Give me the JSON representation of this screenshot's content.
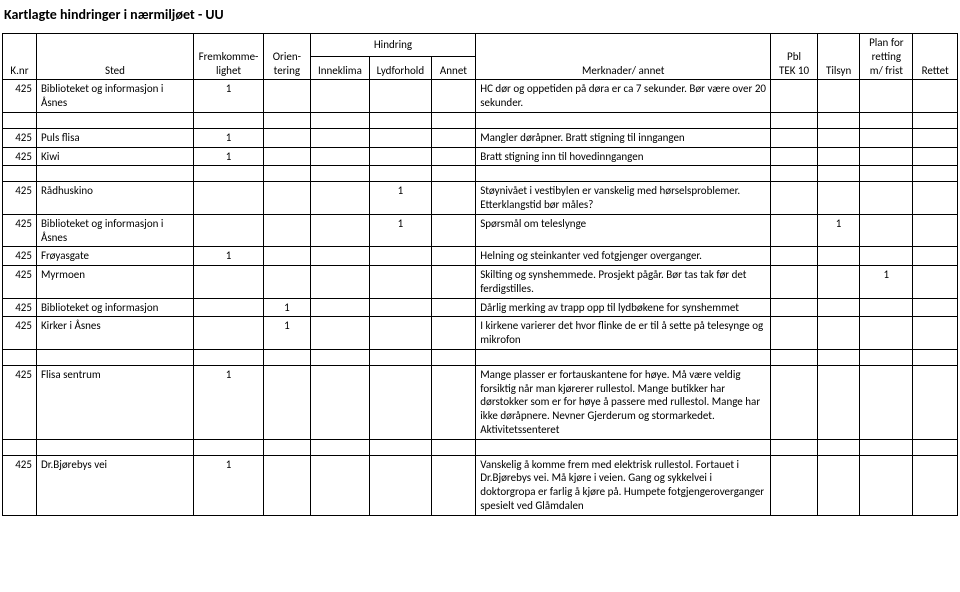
{
  "title": "Kartlagte hindringer i nærmiljøet - UU",
  "headers": {
    "knr": "K.nr",
    "sted": "Sted",
    "hindring": "Hindring",
    "fremkommelighet": "Fremkomme-\nlighet",
    "orientering": "Orien-\ntering",
    "inneklima": "Inneklima",
    "lydforhold": "Lydforhold",
    "annet": "Annet",
    "merknader": "Merknader/ annet",
    "pbl": "Pbl\nTEK 10",
    "tilsyn": "Tilsyn",
    "plan": "Plan for\nretting\nm/ frist",
    "rettet": "Rettet"
  },
  "rows": [
    {
      "knr": "425",
      "sted": "Biblioteket og informasjon i Åsnes",
      "frem": "1",
      "orien": "",
      "inne": "",
      "lyd": "",
      "annet": "",
      "merk": "HC dør og oppetiden på døra er ca 7 sekunder. Bør være over 20 sekunder.",
      "pbl": "",
      "tilsyn": "",
      "plan": "",
      "rettet": "",
      "gap_after": true
    },
    {
      "knr": "425",
      "sted": "Puls flisa",
      "frem": "1",
      "orien": "",
      "inne": "",
      "lyd": "",
      "annet": "",
      "merk": "Mangler døråpner. Bratt stigning til inngangen",
      "pbl": "",
      "tilsyn": "",
      "plan": "",
      "rettet": ""
    },
    {
      "knr": "425",
      "sted": "Kiwi",
      "frem": "1",
      "orien": "",
      "inne": "",
      "lyd": "",
      "annet": "",
      "merk": "Bratt stigning inn til hovedinngangen",
      "pbl": "",
      "tilsyn": "",
      "plan": "",
      "rettet": "",
      "gap_after": true
    },
    {
      "knr": "425",
      "sted": "Rådhuskino",
      "frem": "",
      "orien": "",
      "inne": "",
      "lyd": "1",
      "annet": "",
      "merk": "Støynivået i vestibylen er vanskelig med hørselsproblemer. Etterklangstid bør måles?",
      "pbl": "",
      "tilsyn": "",
      "plan": "",
      "rettet": ""
    },
    {
      "knr": "425",
      "sted": "Biblioteket og informasjon i Åsnes",
      "frem": "",
      "orien": "",
      "inne": "",
      "lyd": "1",
      "annet": "",
      "merk": "Spørsmål om teleslynge",
      "pbl": "",
      "tilsyn": "1",
      "plan": "",
      "rettet": ""
    },
    {
      "knr": "425",
      "sted": "Frøyasgate",
      "frem": "1",
      "orien": "",
      "inne": "",
      "lyd": "",
      "annet": "",
      "merk": "Helning og steinkanter ved fotgjenger overganger.",
      "pbl": "",
      "tilsyn": "",
      "plan": "",
      "rettet": ""
    },
    {
      "knr": "425",
      "sted": "Myrmoen",
      "frem": "",
      "orien": "",
      "inne": "",
      "lyd": "",
      "annet": "",
      "merk": "Skilting og synshemmede. Prosjekt pågår. Bør tas tak før det ferdigstilles.",
      "pbl": "",
      "tilsyn": "",
      "plan": "1",
      "rettet": ""
    },
    {
      "knr": "425",
      "sted": "Biblioteket og informasjon",
      "frem": "",
      "orien": "1",
      "inne": "",
      "lyd": "",
      "annet": "",
      "merk": "Dårlig merking av trapp opp til lydbøkene for synshemmet",
      "pbl": "",
      "tilsyn": "",
      "plan": "",
      "rettet": ""
    },
    {
      "knr": "425",
      "sted": "Kirker i Åsnes",
      "frem": "",
      "orien": "1",
      "inne": "",
      "lyd": "",
      "annet": "",
      "merk": "I kirkene varierer det hvor flinke de er til å sette på telesynge og mikrofon",
      "pbl": "",
      "tilsyn": "",
      "plan": "",
      "rettet": "",
      "gap_after": true
    },
    {
      "knr": "425",
      "sted": "Flisa sentrum",
      "frem": "1",
      "orien": "",
      "inne": "",
      "lyd": "",
      "annet": "",
      "merk": "Mange plasser er fortauskantene for høye. Må være veldig forsiktig når man kjørerer rullestol. Mange butikker har dørstokker som er for høye å passere med rullestol. Mange har ikke døråpnere. Nevner Gjerderum og stormarkedet. Aktivitetssenteret",
      "pbl": "",
      "tilsyn": "",
      "plan": "",
      "rettet": "",
      "gap_after": true
    },
    {
      "knr": "425",
      "sted": "Dr.Bjørebys vei",
      "frem": "1",
      "orien": "",
      "inne": "",
      "lyd": "",
      "annet": "",
      "merk": "Vanskelig å komme frem med elektrisk rullestol. Fortauet i Dr.Bjørebys vei. Må kjøre i veien.  Gang og sykkelvei i doktorgropa er farlig å kjøre på. Humpete fotgjengeroverganger spesielt ved Glåmdalen",
      "pbl": "",
      "tilsyn": "",
      "plan": "",
      "rettet": ""
    }
  ]
}
